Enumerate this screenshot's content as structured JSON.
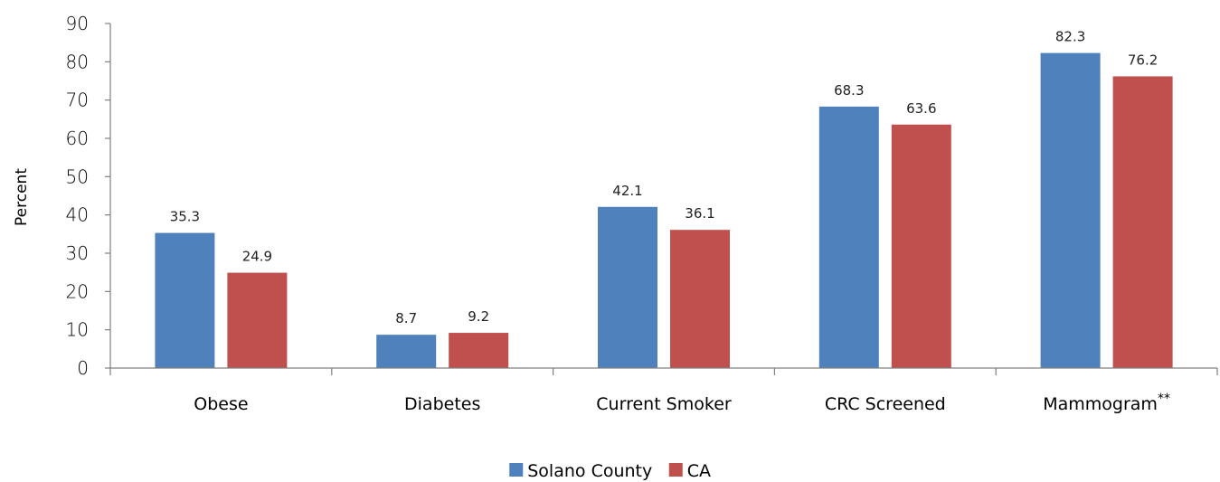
{
  "chart_data": {
    "type": "bar",
    "categories": [
      "Obese",
      "Diabetes",
      "Current Smoker",
      "CRC Screened",
      "Mammogram"
    ],
    "category_footnote": {
      "index": 4,
      "mark": "**"
    },
    "series": [
      {
        "name": "Solano County",
        "color": "#4F81BD",
        "values": [
          35.3,
          8.7,
          42.1,
          68.3,
          82.3
        ]
      },
      {
        "name": "CA",
        "color": "#C0504D",
        "values": [
          24.9,
          9.2,
          36.1,
          63.6,
          76.2
        ]
      }
    ],
    "title": "",
    "xlabel": "",
    "ylabel": "Percent",
    "ylim": [
      0,
      90
    ],
    "yticks": [
      0,
      10,
      20,
      30,
      40,
      50,
      60,
      70,
      80,
      90
    ],
    "grid": false,
    "legend_position": "bottom"
  }
}
